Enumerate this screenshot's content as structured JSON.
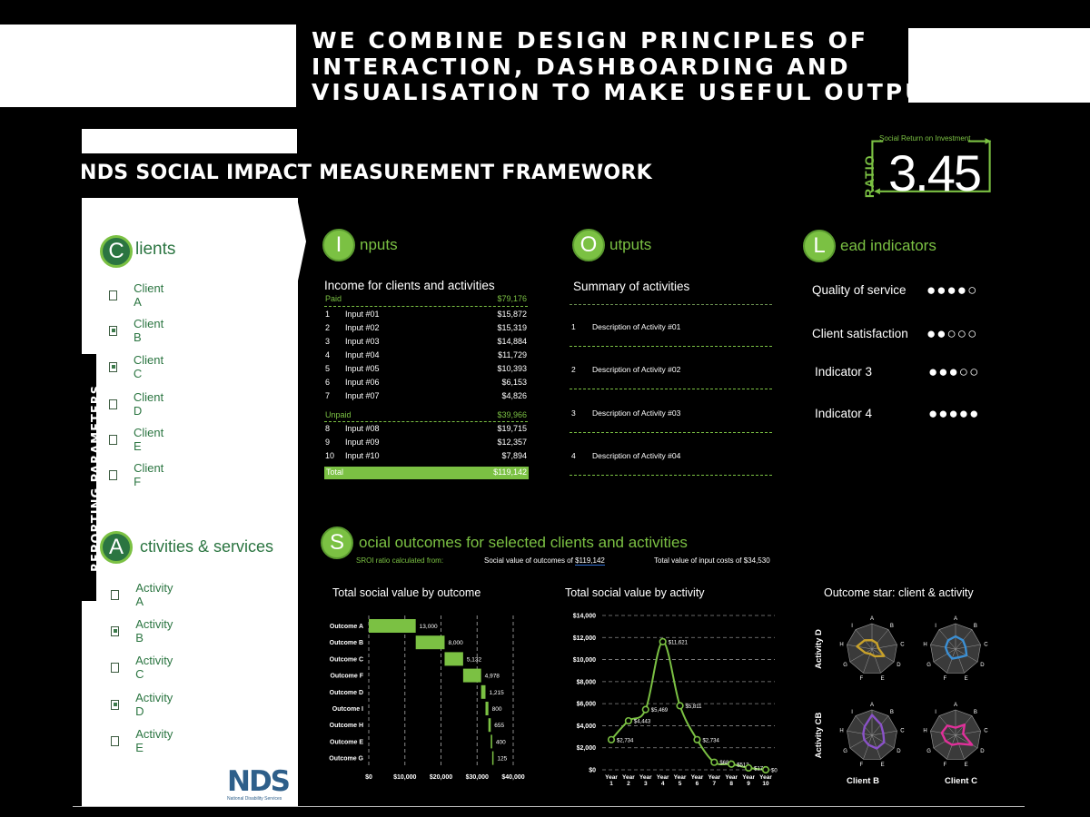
{
  "headline": [
    "WE COMBINE DESIGN PRINCIPLES OF",
    "INTERACTION, DASHBOARDING AND",
    "VISUALISATION TO MAKE USEFUL OUTPUT"
  ],
  "framework_title": "NDS SOCIAL IMPACT MEASUREMENT FRAMEWORK",
  "sroi": {
    "label": "Social Return on Investment",
    "ratio_word": "RATIO",
    "value": "3.45"
  },
  "sidebar": {
    "reporting_label": "REPORTING PARAMETERS",
    "clients": {
      "letter": "C",
      "title": "lients",
      "items": [
        {
          "label": "Client A",
          "checked": false
        },
        {
          "label": "Client B",
          "checked": true
        },
        {
          "label": "Client C",
          "checked": true
        },
        {
          "label": "Client D",
          "checked": false
        },
        {
          "label": "Client E",
          "checked": false
        },
        {
          "label": "Client F",
          "checked": false
        }
      ]
    },
    "activities": {
      "letter": "A",
      "title": "ctivities & services",
      "items": [
        {
          "label": "Activity A",
          "checked": false
        },
        {
          "label": "Activity B",
          "checked": true
        },
        {
          "label": "Activity C",
          "checked": false
        },
        {
          "label": "Activity D",
          "checked": true
        },
        {
          "label": "Activity E",
          "checked": false
        }
      ]
    },
    "logo_text": "NDS",
    "logo_sub": "National Disability Services"
  },
  "inputs": {
    "letter": "I",
    "title": "nputs",
    "table_title": "Income for clients and activities",
    "paid_label": "Paid",
    "paid_total": "$79,176",
    "paid_rows": [
      {
        "n": "1",
        "name": "Input #01",
        "value": "$15,872"
      },
      {
        "n": "2",
        "name": "Input #02",
        "value": "$15,319"
      },
      {
        "n": "3",
        "name": "Input #03",
        "value": "$14,884"
      },
      {
        "n": "4",
        "name": "Input #04",
        "value": "$11,729"
      },
      {
        "n": "5",
        "name": "Input #05",
        "value": "$10,393"
      },
      {
        "n": "6",
        "name": "Input #06",
        "value": "$6,153"
      },
      {
        "n": "7",
        "name": "Input #07",
        "value": "$4,826"
      }
    ],
    "unpaid_label": "Unpaid",
    "unpaid_total": "$39,966",
    "unpaid_rows": [
      {
        "n": "8",
        "name": "Input #08",
        "value": "$19,715"
      },
      {
        "n": "9",
        "name": "Input #09",
        "value": "$12,357"
      },
      {
        "n": "10",
        "name": "Input #10",
        "value": "$7,894"
      }
    ],
    "total_label": "Total",
    "total_value": "$119,142"
  },
  "outputs": {
    "letter": "O",
    "title": "utputs",
    "table_title": "Summary of activities",
    "rows": [
      {
        "n": "1",
        "desc": "Description of Activity #01"
      },
      {
        "n": "2",
        "desc": "Description of Activity #02"
      },
      {
        "n": "3",
        "desc": "Description of Activity #03"
      },
      {
        "n": "4",
        "desc": "Description of Activity #04"
      }
    ]
  },
  "lead": {
    "letter": "L",
    "title": "ead indicators",
    "items": [
      {
        "label": "Quality of service",
        "dots": "●●●●○",
        "rating": 4
      },
      {
        "label": "Client satisfaction",
        "dots": "●●○○○",
        "rating": 2
      },
      {
        "label": "Indicator 3",
        "dots": "●●●○○",
        "rating": 3
      },
      {
        "label": "Indicator 4",
        "dots": "●●●●●",
        "rating": 5
      }
    ]
  },
  "social": {
    "letter": "S",
    "title": "ocial outcomes for selected clients and activities",
    "sroi_from": "SROI ratio calculated from:",
    "value_outcomes_label": "Social value of outcomes of",
    "value_outcomes": "$119,142",
    "input_costs_label": "Total value of input costs of",
    "input_costs": "$34,530"
  },
  "chart_titles": {
    "by_outcome": "Total social value by outcome",
    "by_activity": "Total social value by activity",
    "star": "Outcome star: client & activity"
  },
  "chart_data": [
    {
      "type": "bar",
      "title": "Total social value by outcome",
      "orientation": "horizontal-waterfall",
      "categories": [
        "Outcome A",
        "Outcome B",
        "Outcome C",
        "Outcome F",
        "Outcome D",
        "Outcome I",
        "Outcome H",
        "Outcome E",
        "Outcome G"
      ],
      "values": [
        13000,
        8000,
        5132,
        4978,
        1215,
        800,
        655,
        400,
        125
      ],
      "value_labels": [
        "13,000",
        "8,000",
        "5,132",
        "4,978",
        "1,215",
        "800",
        "655",
        "400",
        "125"
      ],
      "xlim": [
        0,
        40000
      ],
      "xticks": [
        "$0",
        "$10,000",
        "$20,000",
        "$30,000",
        "$40,000"
      ]
    },
    {
      "type": "line",
      "title": "Total social value by activity",
      "x": [
        "Year 1",
        "Year 2",
        "Year 3",
        "Year 4",
        "Year 5",
        "Year 6",
        "Year 7",
        "Year 8",
        "Year 9",
        "Year 10"
      ],
      "x_top": [
        "Year",
        "Year",
        "Year",
        "Year",
        "Year",
        "Year",
        "Year",
        "Year",
        "Year",
        "Year"
      ],
      "x_bottom": [
        "1",
        "2",
        "3",
        "4",
        "5",
        "6",
        "7",
        "8",
        "9",
        "10"
      ],
      "values": [
        2734,
        4443,
        5469,
        11621,
        5811,
        2734,
        684,
        513,
        171,
        0
      ],
      "value_labels": [
        "$2,734",
        "$4,443",
        "$5,469",
        "$11,621",
        "$5,811",
        "$2,734",
        "$684",
        "$513",
        "$171",
        "$0"
      ],
      "ylim": [
        0,
        14000
      ],
      "yticks": [
        "$0",
        "$2,000",
        "$4,000",
        "$6,000",
        "$8,000",
        "$10,000",
        "$12,000",
        "$14,000"
      ]
    },
    {
      "type": "radar",
      "title": "Outcome star: client & activity",
      "axes": [
        "A",
        "B",
        "C",
        "D",
        "E",
        "F",
        "G",
        "H",
        "I"
      ],
      "row_labels": [
        "Activity D",
        "Activity CB"
      ],
      "col_labels": [
        "Client B",
        "Client C"
      ],
      "charts": [
        {
          "row": "Activity D",
          "col": "Client B",
          "color": "#c8a12a",
          "values": [
            0.35,
            0.3,
            0.25,
            0.55,
            0.3,
            0.2,
            0.3,
            0.6,
            0.45
          ]
        },
        {
          "row": "Activity D",
          "col": "Client C",
          "color": "#3b8fd4",
          "values": [
            0.5,
            0.45,
            0.4,
            0.5,
            0.35,
            0.4,
            0.35,
            0.4,
            0.45
          ]
        },
        {
          "row": "Activity CB",
          "col": "Client B",
          "color": "#8a52c8",
          "values": [
            0.8,
            0.55,
            0.45,
            0.55,
            0.55,
            0.4,
            0.35,
            0.35,
            0.45
          ]
        },
        {
          "row": "Activity CB",
          "col": "Client C",
          "color": "#e0309a",
          "values": [
            0.3,
            0.55,
            0.3,
            0.75,
            0.35,
            0.4,
            0.45,
            0.55,
            0.5
          ]
        }
      ]
    }
  ]
}
